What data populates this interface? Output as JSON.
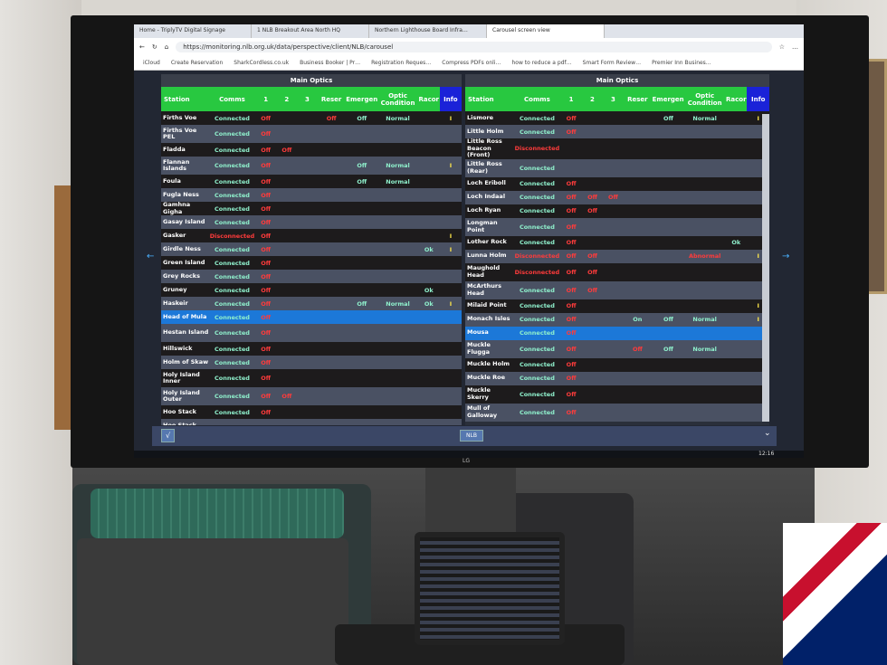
{
  "browser": {
    "tabs": [
      "Home - TriplyTV Digital Signage",
      "1 NLB Breakout Area North HQ",
      "Northern Lighthouse Board Infra…",
      "Carousel screen view"
    ],
    "url": "https://monitoring.nlb.org.uk/data/perspective/client/NLB/carousel",
    "bookmarks": [
      "iCloud",
      "Create Reservation",
      "SharkCordless.co.uk",
      "Business Booker | Pr…",
      "Registration Reques…",
      "Compress PDFs onli…",
      "how to reduce a pdf…",
      "Smart Form Review…",
      "Premier Inn Busines…"
    ]
  },
  "columns": [
    "Station",
    "Comms",
    "1",
    "2",
    "3",
    "Reser",
    "Emergenc",
    "Optic Condition",
    "Racor",
    "Info"
  ],
  "left_panel": {
    "title": "Main Optics",
    "selected": "Head of Mula",
    "rows": [
      [
        "Firths Voe",
        "Connected",
        "Off",
        "",
        "",
        "Off",
        "Off",
        "Normal",
        "",
        "I"
      ],
      [
        "Firths Voe PEL",
        "Connected",
        "Off",
        "",
        "",
        "",
        "",
        "",
        "",
        ""
      ],
      [
        "Fladda",
        "Connected",
        "Off",
        "Off",
        "",
        "",
        "",
        "",
        "",
        ""
      ],
      [
        "Flannan Islands",
        "Connected",
        "Off",
        "",
        "",
        "",
        "Off",
        "Normal",
        "",
        "I"
      ],
      [
        "Foula",
        "Connected",
        "Off",
        "",
        "",
        "",
        "Off",
        "Normal",
        "",
        ""
      ],
      [
        "Fugla Ness",
        "Connected",
        "Off",
        "",
        "",
        "",
        "",
        "",
        "",
        ""
      ],
      [
        "Gamhna Gigha",
        "Connected",
        "Off",
        "",
        "",
        "",
        "",
        "",
        "",
        ""
      ],
      [
        "Gasay Island",
        "Connected",
        "Off",
        "",
        "",
        "",
        "",
        "",
        "",
        ""
      ],
      [
        "Gasker",
        "Disconnected",
        "Off",
        "",
        "",
        "",
        "",
        "",
        "",
        "I"
      ],
      [
        "Girdle Ness",
        "Connected",
        "Off",
        "",
        "",
        "",
        "",
        "",
        "Ok",
        "I"
      ],
      [
        "Green Island",
        "Connected",
        "Off",
        "",
        "",
        "",
        "",
        "",
        "",
        ""
      ],
      [
        "Grey Rocks",
        "Connected",
        "Off",
        "",
        "",
        "",
        "",
        "",
        "",
        ""
      ],
      [
        "Gruney",
        "Connected",
        "Off",
        "",
        "",
        "",
        "",
        "",
        "Ok",
        ""
      ],
      [
        "Haskeir",
        "Connected",
        "Off",
        "",
        "",
        "",
        "Off",
        "Normal",
        "Ok",
        "I"
      ],
      [
        "Head of Mula",
        "Connected",
        "Off",
        "",
        "",
        "",
        "",
        "",
        "",
        ""
      ],
      [
        "Hestan Island",
        "Connected",
        "Off",
        "",
        "",
        "",
        "",
        "",
        "",
        ""
      ],
      [
        "Hillswick",
        "Connected",
        "Off",
        "",
        "",
        "",
        "",
        "",
        "",
        ""
      ],
      [
        "Holm of Skaw",
        "Connected",
        "Off",
        "",
        "",
        "",
        "",
        "",
        "",
        ""
      ],
      [
        "Holy Island Inner",
        "Connected",
        "Off",
        "",
        "",
        "",
        "",
        "",
        "",
        ""
      ],
      [
        "Holy Island Outer",
        "Connected",
        "Off",
        "Off",
        "",
        "",
        "",
        "",
        "",
        ""
      ],
      [
        "Hoo Stack",
        "Connected",
        "Off",
        "",
        "",
        "",
        "",
        "",
        "",
        ""
      ],
      [
        "Hoo Stack",
        "",
        "",
        "",
        "",
        "",
        "",
        "",
        "",
        ""
      ]
    ]
  },
  "right_panel": {
    "title": "Main Optics",
    "selected": "Mousa",
    "rows": [
      [
        "Lismore",
        "Connected",
        "Off",
        "",
        "",
        "",
        "Off",
        "Normal",
        "",
        "I"
      ],
      [
        "Little Holm",
        "Connected",
        "Off",
        "",
        "",
        "",
        "",
        "",
        "",
        ""
      ],
      [
        "Little Ross Beacon (Front)",
        "Disconnected",
        "",
        "",
        "",
        "",
        "",
        "",
        "",
        ""
      ],
      [
        "Little Ross (Rear)",
        "Connected",
        "",
        "",
        "",
        "",
        "",
        "",
        "",
        ""
      ],
      [
        "Loch Eriboll",
        "Connected",
        "Off",
        "",
        "",
        "",
        "",
        "",
        "",
        ""
      ],
      [
        "Loch Indaal",
        "Connected",
        "Off",
        "Off",
        "Off",
        "",
        "",
        "",
        "",
        ""
      ],
      [
        "Loch Ryan",
        "Connected",
        "Off",
        "Off",
        "",
        "",
        "",
        "",
        "",
        ""
      ],
      [
        "Longman Point",
        "Connected",
        "Off",
        "",
        "",
        "",
        "",
        "",
        "",
        ""
      ],
      [
        "Lother Rock",
        "Connected",
        "Off",
        "",
        "",
        "",
        "",
        "",
        "Ok",
        ""
      ],
      [
        "Lunna Holm",
        "Disconnected",
        "Off",
        "Off",
        "",
        "",
        "",
        "Abnormal",
        "",
        "I"
      ],
      [
        "Maughold Head",
        "Disconnected",
        "Off",
        "Off",
        "",
        "",
        "",
        "",
        "",
        ""
      ],
      [
        "McArthurs Head",
        "Connected",
        "Off",
        "Off",
        "",
        "",
        "",
        "",
        "",
        ""
      ],
      [
        "Milaid Point",
        "Connected",
        "Off",
        "",
        "",
        "",
        "",
        "",
        "",
        "I"
      ],
      [
        "Monach Isles",
        "Connected",
        "Off",
        "",
        "",
        "On",
        "Off",
        "Normal",
        "",
        "I"
      ],
      [
        "Mousa",
        "Connected",
        "Off",
        "",
        "",
        "",
        "",
        "",
        "",
        ""
      ],
      [
        "Muckle Flugga",
        "Connected",
        "Off",
        "",
        "",
        "Off",
        "Off",
        "Normal",
        "",
        ""
      ],
      [
        "Muckle Holm",
        "Connected",
        "Off",
        "",
        "",
        "",
        "",
        "",
        "",
        ""
      ],
      [
        "Muckle Roe",
        "Connected",
        "Off",
        "",
        "",
        "",
        "",
        "",
        "",
        ""
      ],
      [
        "Muckle Skerry",
        "Connected",
        "Off",
        "",
        "",
        "",
        "",
        "",
        "",
        ""
      ],
      [
        "Mull of Galloway",
        "Connected",
        "Off",
        "",
        "",
        "",
        "",
        "",
        "",
        ""
      ]
    ]
  },
  "bottom": {
    "check_label": "√",
    "nlb_label": "NLB",
    "clock": "12:16"
  },
  "tv_brand": "LG",
  "colors": {
    "header": "#28c840",
    "info_header": "#1a22d8",
    "selected_row": "#1c78d8",
    "ok": "#8ff0cc",
    "alarm": "#ff3b3b",
    "info": "#ffe84a"
  }
}
